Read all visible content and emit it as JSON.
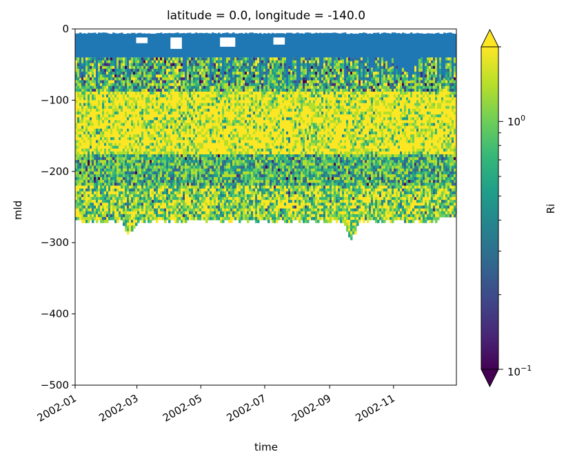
{
  "chart_data": {
    "type": "heatmap",
    "title": "latitude = 0.0, longitude = -140.0",
    "xlabel": "time",
    "ylabel": "mld",
    "x_ticks": [
      "2002-01",
      "2002-03",
      "2002-05",
      "2002-07",
      "2002-09",
      "2002-11"
    ],
    "xlim": [
      "2002-01-01",
      "2002-12-31"
    ],
    "y_ticks": [
      0,
      -100,
      -200,
      -300,
      -400,
      -500
    ],
    "ylim": [
      -500,
      0
    ],
    "colorbar": {
      "label": "Ri",
      "scale": "log",
      "range": [
        0.1,
        2.0
      ],
      "extend": "both",
      "colormap": "viridis",
      "major_ticks": [
        {
          "value": 1,
          "label": "10^0"
        },
        {
          "value": 0.1,
          "label": "10^-1"
        }
      ]
    },
    "mask_color": "#1f77b4",
    "mask_depth_range": [
      -40,
      -5
    ],
    "data_region_depth_range": [
      -290,
      -5
    ],
    "layers": [
      {
        "depth_top": -5,
        "depth_bottom": -40,
        "description_value": "masked"
      },
      {
        "depth_top": -40,
        "depth_bottom": -80,
        "Ri_typical": 0.3
      },
      {
        "depth_top": -80,
        "depth_bottom": -170,
        "Ri_typical": 2.0
      },
      {
        "depth_top": -170,
        "depth_bottom": -220,
        "Ri_typical": 0.5
      },
      {
        "depth_top": -220,
        "depth_bottom": -270,
        "Ri_typical": 1.2
      }
    ],
    "colors": {
      "viridis": [
        "#440154",
        "#482878",
        "#3e4989",
        "#31688e",
        "#26828e",
        "#1f9e89",
        "#35b779",
        "#6ece58",
        "#b5de2b",
        "#fde725"
      ]
    }
  }
}
